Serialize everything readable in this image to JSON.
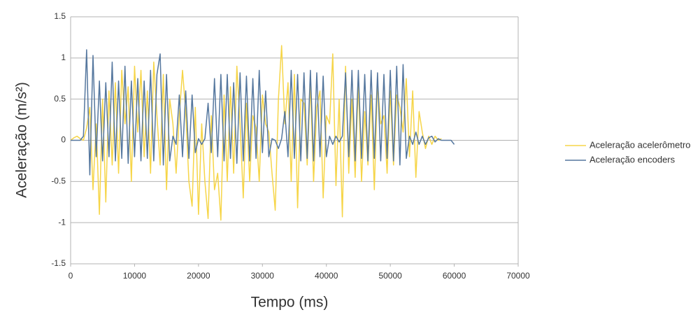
{
  "chart_data": {
    "type": "line",
    "x_label": "Tempo (ms)",
    "y_label": "Aceleração (m/s²)",
    "xlim": [
      0,
      70000
    ],
    "xticks": [
      0,
      10000,
      20000,
      30000,
      40000,
      50000,
      60000,
      70000
    ],
    "ylim": [
      -1.5,
      1.5
    ],
    "yticks": [
      -1.5,
      -1,
      -0.5,
      0,
      0.5,
      1,
      1.5
    ],
    "grid": true,
    "legend": "right",
    "x": [
      0,
      500,
      1000,
      1500,
      2000,
      2500,
      3000,
      3500,
      4000,
      4500,
      5000,
      5500,
      6000,
      6500,
      7000,
      7500,
      8000,
      8500,
      9000,
      9500,
      10000,
      10500,
      11000,
      11500,
      12000,
      12500,
      13000,
      13500,
      14000,
      14500,
      15000,
      15500,
      16000,
      16500,
      17000,
      17500,
      18000,
      18500,
      19000,
      19500,
      20000,
      20500,
      21000,
      21500,
      22000,
      22500,
      23000,
      23500,
      24000,
      24500,
      25000,
      25500,
      26000,
      26500,
      27000,
      27500,
      28000,
      28500,
      29000,
      29500,
      30000,
      30500,
      31000,
      31500,
      32000,
      32500,
      33000,
      33500,
      34000,
      34500,
      35000,
      35500,
      36000,
      36500,
      37000,
      37500,
      38000,
      38500,
      39000,
      39500,
      40000,
      40500,
      41000,
      41500,
      42000,
      42500,
      43000,
      43500,
      44000,
      44500,
      45000,
      45500,
      46000,
      46500,
      47000,
      47500,
      48000,
      48500,
      49000,
      49500,
      50000,
      50500,
      51000,
      51500,
      52000,
      52500,
      53000,
      53500,
      54000,
      54500,
      55000,
      55500,
      56000,
      56500,
      57000,
      57500,
      58000,
      58500,
      59000,
      59500,
      60000
    ],
    "series": [
      {
        "name": "Aceleração acelerômetro",
        "color": "#f6d548",
        "values": [
          0,
          0.03,
          0.05,
          0.02,
          0,
          0.15,
          0.4,
          -0.6,
          0.2,
          -0.9,
          0.5,
          -0.75,
          0.6,
          -0.3,
          0.7,
          -0.4,
          0.85,
          0.2,
          0.65,
          -0.5,
          0.9,
          0.1,
          0.85,
          -0.2,
          0.6,
          -0.4,
          0.95,
          0.3,
          -0.3,
          0.8,
          -0.6,
          0.5,
          0.2,
          -0.4,
          0.3,
          0.85,
          0.35,
          -0.5,
          -0.8,
          0.4,
          -0.9,
          0.2,
          -0.5,
          -0.95,
          0.3,
          -0.6,
          -0.4,
          -0.97,
          0.55,
          -0.5,
          0.65,
          -0.4,
          0.9,
          0.2,
          -0.7,
          0.45,
          -0.5,
          0.3,
          0.15,
          -0.5,
          0.55,
          0.2,
          0.1,
          -0.4,
          -0.85,
          0.5,
          1.15,
          0.2,
          0.7,
          -0.5,
          0.8,
          -0.82,
          0.5,
          0.45,
          -0.3,
          0.7,
          -0.5,
          0.4,
          0.6,
          -0.7,
          0.3,
          0.2,
          1.05,
          -0.55,
          0.5,
          -0.93,
          0.9,
          -0.4,
          0.5,
          -0.45,
          0.7,
          -0.5,
          0.35,
          -0.3,
          0.55,
          -0.6,
          0.7,
          0.2,
          0.3,
          -0.4,
          0.6,
          -0.3,
          0.55,
          0.4,
          0.1,
          0.75,
          -0.2,
          0.6,
          -0.45,
          0.35,
          0.1,
          -0.1,
          0.05,
          -0.05,
          0.05,
          0,
          0.02,
          null,
          null,
          null,
          null
        ]
      },
      {
        "name": "Aceleração encoders",
        "color": "#55779e",
        "values": [
          0,
          0,
          0,
          0,
          0.05,
          1.1,
          -0.42,
          1.03,
          -0.2,
          0.72,
          -0.25,
          0.7,
          -0.2,
          0.95,
          -0.25,
          0.72,
          -0.22,
          0.9,
          -0.28,
          0.72,
          -0.2,
          0.75,
          -0.25,
          0.72,
          -0.22,
          0.85,
          -0.25,
          0.8,
          1.05,
          -0.3,
          0.8,
          -0.25,
          0.05,
          -0.05,
          0.55,
          -0.2,
          0.6,
          -0.22,
          0.55,
          -0.15,
          0.02,
          -0.05,
          0.02,
          0.45,
          -0.15,
          0.75,
          -0.2,
          0.8,
          -0.25,
          0.8,
          -0.22,
          0.7,
          -0.28,
          0.82,
          -0.25,
          0.78,
          -0.25,
          0.75,
          -0.22,
          0.85,
          -0.15,
          0.6,
          -0.2,
          0.02,
          0,
          -0.1,
          0.02,
          0.35,
          -0.2,
          0.85,
          -0.22,
          0.8,
          -0.25,
          0.82,
          -0.22,
          0.85,
          -0.25,
          0.82,
          -0.2,
          0.78,
          -0.2,
          0.05,
          -0.05,
          0.05,
          -0.02,
          0.05,
          0.82,
          -0.2,
          0.85,
          -0.25,
          0.85,
          -0.22,
          0.8,
          -0.25,
          0.85,
          -0.22,
          0.82,
          -0.25,
          0.8,
          -0.22,
          0.85,
          -0.25,
          0.9,
          -0.3,
          0.92,
          -0.22,
          0.05,
          -0.05,
          0.1,
          -0.05,
          0.05,
          -0.05,
          0.03,
          0.05,
          -0.02,
          0.02,
          0,
          0,
          0,
          0,
          -0.05
        ]
      }
    ]
  }
}
